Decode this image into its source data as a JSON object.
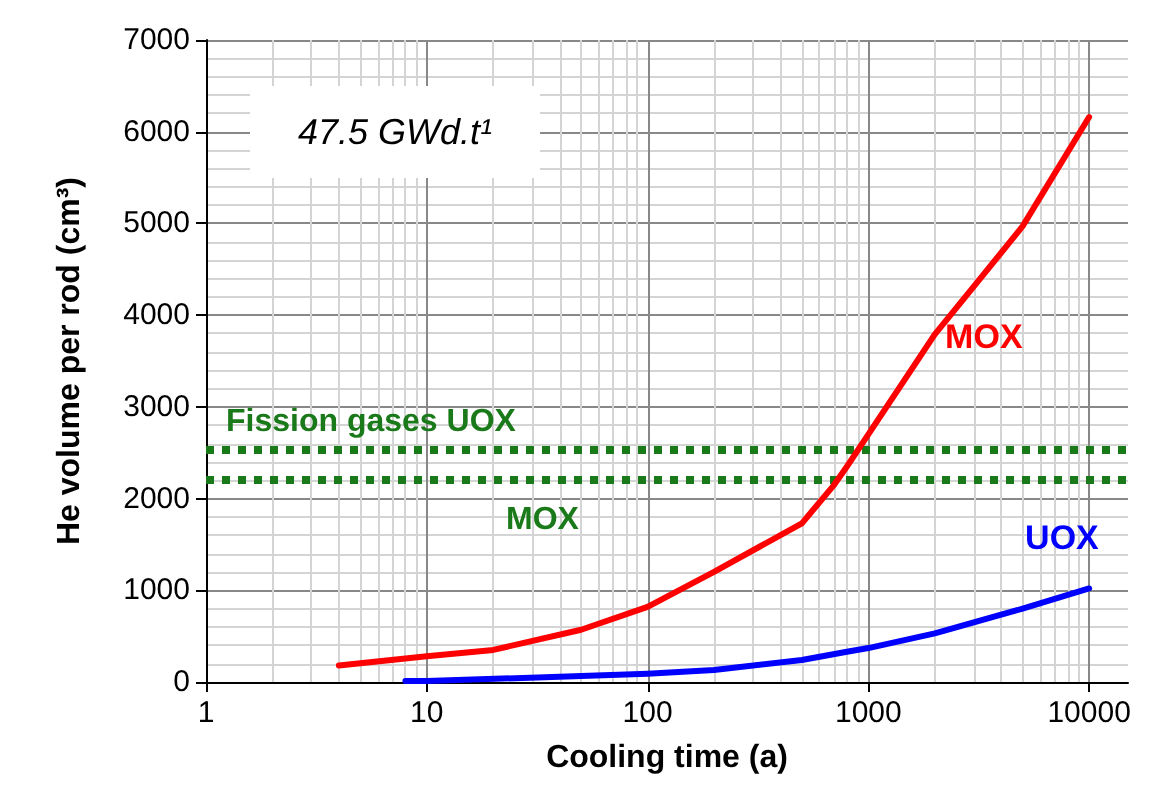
{
  "chart_data": {
    "type": "line",
    "xlabel": "Cooling time (a)",
    "ylabel": "He volume per rod (cm³)",
    "annotations": [
      "47.5 GWd.t¹"
    ],
    "log": "x",
    "xlim": [
      1,
      15000
    ],
    "xticks": [
      1,
      10,
      100,
      1000,
      10000
    ],
    "ylim": [
      0,
      7000
    ],
    "yticks": [
      0,
      1000,
      2000,
      3000,
      4000,
      5000,
      6000,
      7000
    ],
    "grid": true,
    "legend": false,
    "marker": "none",
    "line_style": "solid",
    "series": [
      {
        "name": "MOX",
        "color": "#ff0000",
        "x": [
          4,
          10,
          20,
          50,
          100,
          200,
          500,
          700,
          800,
          1000,
          2000,
          3000,
          5000,
          10000
        ],
        "values": [
          180,
          280,
          350,
          570,
          820,
          1200,
          1730,
          2150,
          2350,
          2700,
          3790,
          4310,
          4970,
          6160
        ]
      },
      {
        "name": "UOX",
        "color": "#0000ff",
        "x": [
          8,
          10,
          100,
          200,
          500,
          800,
          1000,
          2000,
          5000,
          10000
        ],
        "values": [
          10,
          10,
          90,
          130,
          240,
          330,
          370,
          530,
          800,
          1020
        ]
      }
    ],
    "ref_lines": [
      {
        "axis": "y",
        "value": 2530,
        "label": "Fission gases UOX",
        "color": "#1a7a1a",
        "line_style": "dotted"
      },
      {
        "axis": "y",
        "value": 2200,
        "label": "MOX",
        "color": "#1a7a1a",
        "line_style": "dotted"
      }
    ]
  }
}
